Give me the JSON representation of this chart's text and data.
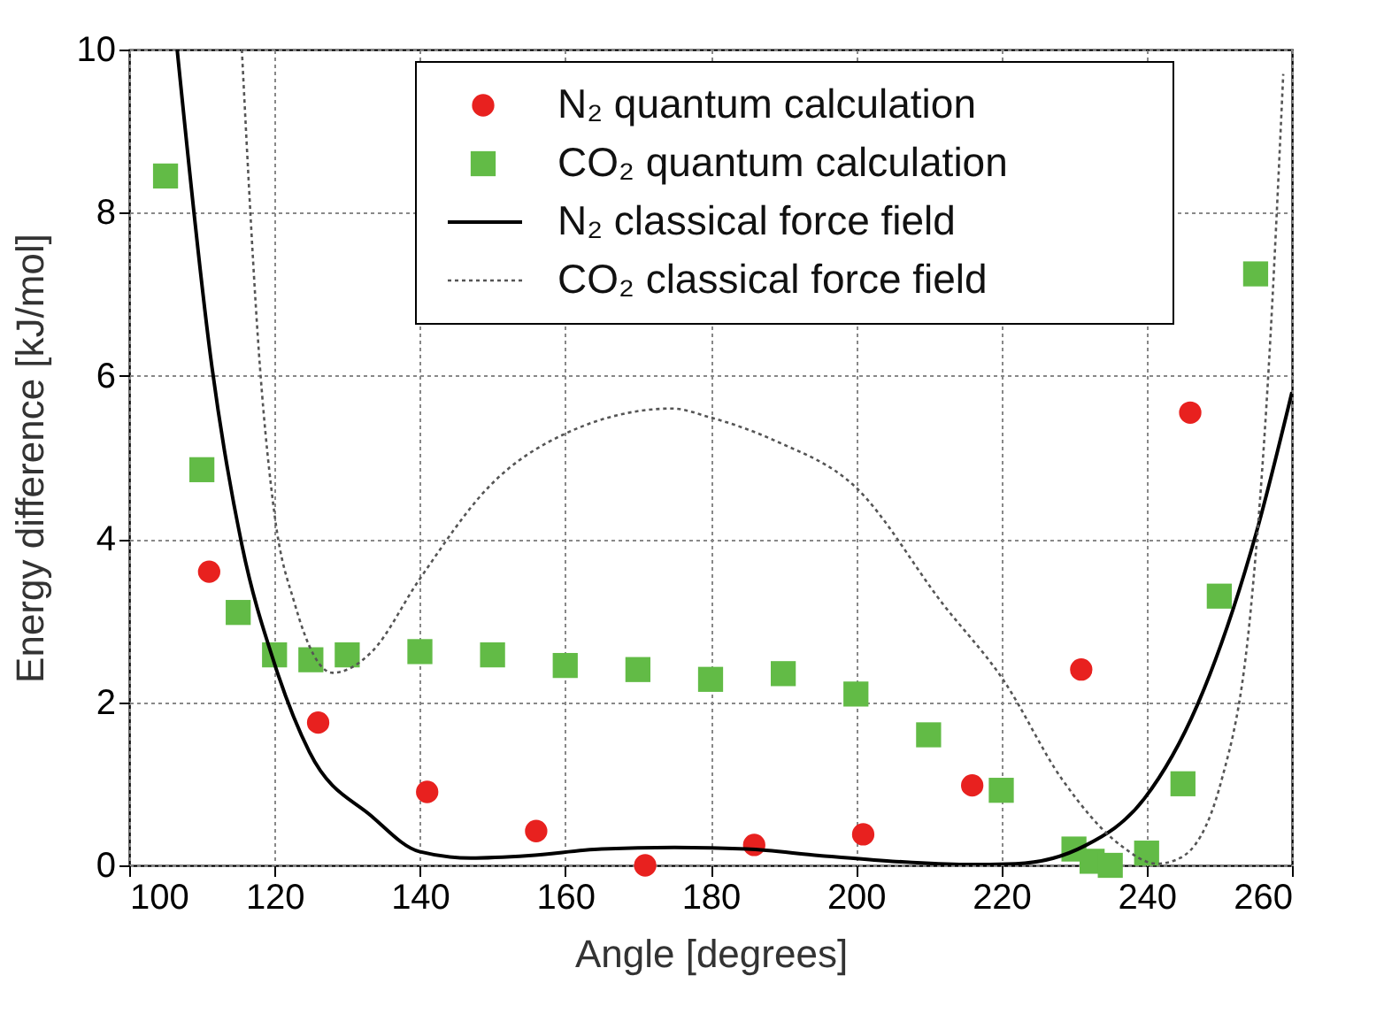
{
  "chart_data": {
    "type": "scatter",
    "xlabel": "Angle [degrees]",
    "ylabel": "Energy difference [kJ/mol]",
    "xlim": [
      100,
      260
    ],
    "xticks": [
      100,
      120,
      140,
      160,
      180,
      200,
      220,
      240,
      260
    ],
    "ylim": [
      0,
      10
    ],
    "yticks": [
      0,
      2,
      4,
      6,
      8,
      10
    ],
    "grid": true,
    "legend": "top right",
    "series": [
      {
        "name": "N₂ quantum calculation",
        "marker": "circle",
        "color": "#e8211f",
        "x": [
          111,
          126,
          141,
          156,
          171,
          186,
          201,
          216,
          231,
          246
        ],
        "values": [
          3.6,
          1.75,
          0.9,
          0.42,
          0.0,
          0.25,
          0.38,
          0.98,
          2.4,
          5.55
        ]
      },
      {
        "name": "CO₂ quantum calculation",
        "marker": "square",
        "color": "#62bb46",
        "x": [
          105,
          110,
          115,
          120,
          125,
          130,
          140,
          150,
          160,
          170,
          180,
          190,
          200,
          210,
          220,
          230,
          232.5,
          235,
          240,
          245,
          250,
          255
        ],
        "values": [
          8.45,
          4.85,
          3.1,
          2.58,
          2.52,
          2.58,
          2.62,
          2.58,
          2.45,
          2.4,
          2.28,
          2.35,
          2.1,
          1.6,
          0.92,
          0.2,
          0.05,
          0.0,
          0.15,
          1.0,
          3.3,
          7.25
        ]
      },
      {
        "name": "N₂ classical force field",
        "type": "line",
        "line_style": "solid",
        "color": "#000000",
        "x": [
          106.6,
          111.4,
          115.5,
          120,
          124.8,
          133.4,
          139.9,
          147,
          155,
          165,
          175,
          185,
          195,
          205,
          215,
          222,
          231.5,
          239.7,
          247,
          255.1,
          260
        ],
        "values": [
          10,
          6.1,
          3.93,
          2.47,
          1.39,
          0.6,
          0.17,
          0.09,
          0.12,
          0.2,
          0.22,
          0.2,
          0.12,
          0.05,
          0.01,
          0.02,
          0.24,
          0.82,
          1.97,
          4.08,
          5.8
        ]
      },
      {
        "name": "CO₂ classical force field",
        "type": "line",
        "line_style": "dotted",
        "color": "#555555",
        "x": [
          115.5,
          118,
          120,
          122.8,
          128,
          133.4,
          139.9,
          149.6,
          160.2,
          174.8,
          179.6,
          189,
          199.9,
          212,
          220.3,
          228.4,
          236.5,
          241.4,
          244.6,
          250.3,
          254.4,
          256.8,
          258.8
        ],
        "values": [
          10,
          6.1,
          4.3,
          3.2,
          2.36,
          2.62,
          3.5,
          4.65,
          5.3,
          5.6,
          5.5,
          5.2,
          4.64,
          3.2,
          2.27,
          1.05,
          0.24,
          0.02,
          0.09,
          1.04,
          3.2,
          6.1,
          9.7
        ]
      }
    ]
  }
}
